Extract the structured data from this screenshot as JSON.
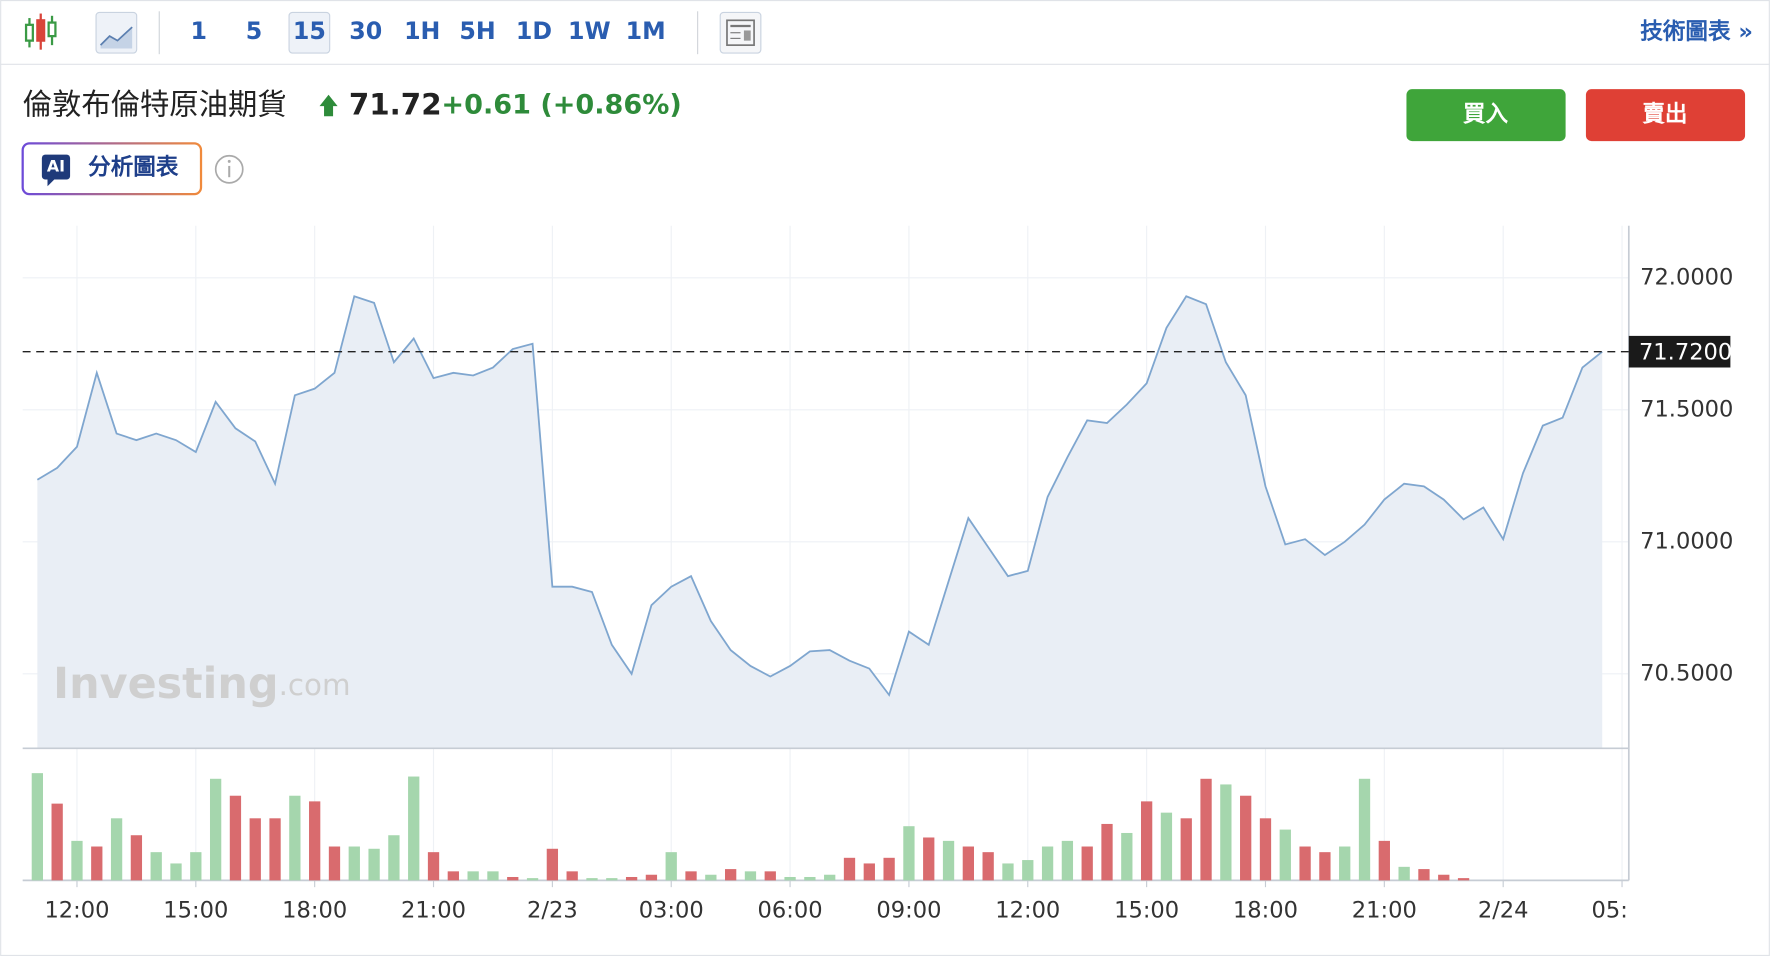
{
  "toolbar": {
    "intervals": [
      "1",
      "5",
      "15",
      "30",
      "1H",
      "5H",
      "1D",
      "1W",
      "1M"
    ],
    "selected_index": 2,
    "right_link": "技術圖表 »"
  },
  "header": {
    "name": "倫敦布倫特原油期貨",
    "price": 71.72,
    "change": "+0.61 (+0.86%)",
    "buy": "買入",
    "sell": "賣出",
    "ai_badge": "AI",
    "ai_text": "分析圖表"
  },
  "watermark": {
    "brand": "Investing",
    "suffix": ".com"
  },
  "chart_data": [
    {
      "type": "area",
      "color": "#7fa6cf",
      "fill": "#e9eef5",
      "grid": true,
      "categories": [
        null,
        null,
        "12:00",
        null,
        null,
        null,
        null,
        null,
        "15:00",
        null,
        null,
        null,
        null,
        null,
        "18:00",
        null,
        null,
        null,
        null,
        null,
        "21:00",
        null,
        null,
        null,
        null,
        null,
        "2/23",
        null,
        null,
        null,
        null,
        null,
        "03:00",
        null,
        null,
        null,
        null,
        null,
        "06:00",
        null,
        null,
        null,
        null,
        null,
        "09:00",
        null,
        null,
        null,
        null,
        null,
        "12:00",
        null,
        null,
        null,
        null,
        null,
        "15:00",
        null,
        null,
        null,
        null,
        null,
        "18:00",
        null,
        null,
        null,
        null,
        null,
        "21:00",
        null,
        null,
        null,
        null,
        null,
        "2/24",
        null,
        null,
        null,
        null,
        null,
        "05:"
      ],
      "values": [
        71.235,
        71.28,
        71.36,
        71.64,
        71.41,
        71.385,
        71.41,
        71.385,
        71.34,
        71.53,
        71.43,
        71.38,
        71.22,
        71.555,
        71.58,
        71.64,
        71.93,
        71.905,
        71.68,
        71.77,
        71.62,
        71.64,
        71.63,
        71.66,
        71.73,
        71.75,
        70.83,
        70.83,
        70.81,
        70.61,
        70.5,
        70.76,
        70.83,
        70.87,
        70.7,
        70.59,
        70.53,
        70.49,
        70.53,
        70.585,
        70.59,
        70.55,
        70.52,
        70.42,
        70.66,
        70.61,
        70.85,
        71.09,
        70.98,
        70.87,
        70.89,
        71.17,
        71.32,
        71.46,
        71.45,
        71.52,
        71.6,
        71.81,
        71.93,
        71.9,
        71.68,
        71.555,
        71.21,
        70.99,
        71.01,
        70.95,
        71.0,
        71.065,
        71.16,
        71.22,
        71.21,
        71.16,
        71.085,
        71.13,
        71.01,
        71.26,
        71.44,
        71.47,
        71.66,
        71.72,
        null
      ],
      "ylim": [
        70.218,
        72.197
      ],
      "yticks": [
        {
          "value": 70.5,
          "label": "70.5000"
        },
        {
          "value": 71,
          "label": "71.0000"
        },
        {
          "value": 71.5,
          "label": "71.5000"
        },
        {
          "value": 72,
          "label": "72.0000"
        }
      ],
      "reference_line": {
        "value": 71.72,
        "label": "71.7200"
      }
    },
    {
      "type": "bar",
      "ylim": [
        0,
        100
      ],
      "values": [
        95,
        68,
        35,
        30,
        55,
        40,
        25,
        15,
        25,
        90,
        75,
        55,
        55,
        75,
        70,
        30,
        30,
        28,
        40,
        92,
        25,
        8,
        8,
        8,
        3,
        2,
        28,
        8,
        2,
        2,
        3,
        5,
        25,
        8,
        5,
        10,
        8,
        8,
        3,
        3,
        5,
        20,
        15,
        20,
        48,
        38,
        35,
        30,
        25,
        15,
        18,
        30,
        35,
        30,
        50,
        42,
        70,
        60,
        55,
        90,
        85,
        75,
        55,
        45,
        30,
        25,
        30,
        90,
        35,
        12,
        10,
        5,
        2,
        null,
        null,
        null,
        null,
        null,
        null,
        null,
        null
      ],
      "colors": [
        "#a5d6ad",
        "#d96b6e",
        "#a5d6ad",
        "#d96b6e",
        "#a5d6ad",
        "#d96b6e",
        "#a5d6ad",
        "#a5d6ad",
        "#a5d6ad",
        "#a5d6ad",
        "#d96b6e",
        "#d96b6e",
        "#d96b6e",
        "#a5d6ad",
        "#d96b6e",
        "#d96b6e",
        "#a5d6ad",
        "#a5d6ad",
        "#a5d6ad",
        "#a5d6ad",
        "#d96b6e",
        "#d96b6e",
        "#a5d6ad",
        "#a5d6ad",
        "#d96b6e",
        "#a5d6ad",
        "#d96b6e",
        "#d96b6e",
        "#a5d6ad",
        "#a5d6ad",
        "#d96b6e",
        "#d96b6e",
        "#a5d6ad",
        "#d96b6e",
        "#a5d6ad",
        "#d96b6e",
        "#a5d6ad",
        "#d96b6e",
        "#a5d6ad",
        "#a5d6ad",
        "#a5d6ad",
        "#d96b6e",
        "#d96b6e",
        "#d96b6e",
        "#a5d6ad",
        "#d96b6e",
        "#a5d6ad",
        "#d96b6e",
        "#d96b6e",
        "#a5d6ad",
        "#a5d6ad",
        "#a5d6ad",
        "#a5d6ad",
        "#d96b6e",
        "#d96b6e",
        "#a5d6ad",
        "#d96b6e",
        "#a5d6ad",
        "#d96b6e",
        "#d96b6e",
        "#a5d6ad",
        "#d96b6e",
        "#d96b6e",
        "#a5d6ad",
        "#d96b6e",
        "#d96b6e",
        "#a5d6ad",
        "#a5d6ad",
        "#d96b6e",
        "#a5d6ad",
        "#d96b6e",
        "#d96b6e",
        "#d96b6e",
        null,
        null,
        null,
        null,
        null,
        null,
        null,
        null
      ]
    }
  ]
}
